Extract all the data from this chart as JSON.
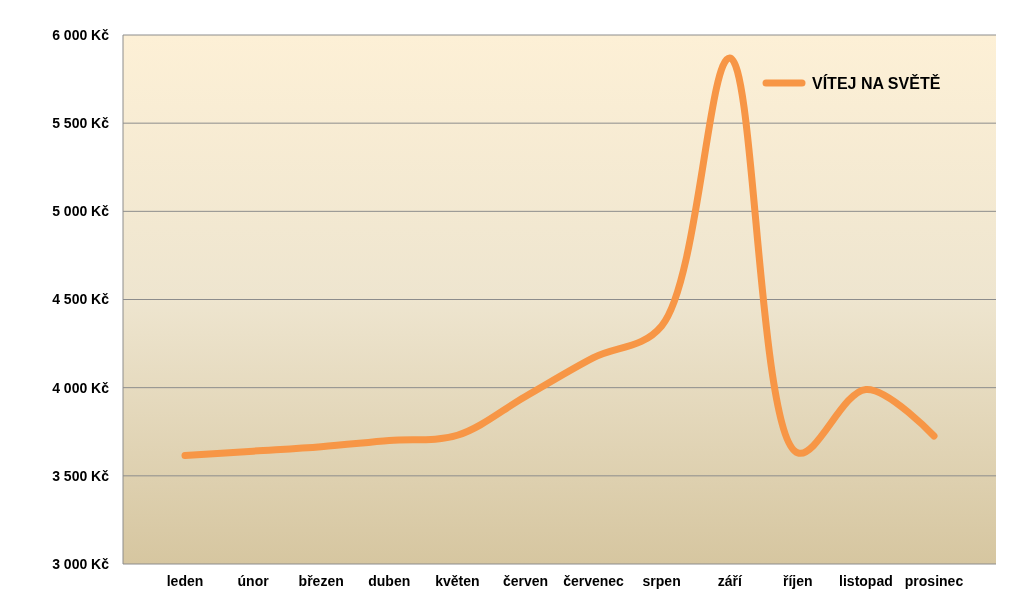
{
  "chart_data": {
    "type": "line",
    "categories": [
      "leden",
      "únor",
      "březen",
      "duben",
      "květen",
      "červen",
      "červenec",
      "srpen",
      "září",
      "říjen",
      "listopad",
      "prosinec"
    ],
    "series": [
      {
        "name": "VÍTEJ NA SVĚTĚ",
        "color": "#f79646",
        "values": [
          3615,
          3640,
          3665,
          3700,
          3730,
          3950,
          4170,
          4350,
          5870,
          3630,
          3990,
          3726
        ]
      }
    ],
    "ylim": [
      3000,
      6000
    ],
    "yticks": [
      {
        "value": 3000,
        "label": "3 000 Kč"
      },
      {
        "value": 3500,
        "label": "3 500 Kč"
      },
      {
        "value": 4000,
        "label": "4 000 Kč"
      },
      {
        "value": 4500,
        "label": "4 500 Kč"
      },
      {
        "value": 5000,
        "label": "5 000 Kč"
      },
      {
        "value": 5500,
        "label": "5 500 Kč"
      },
      {
        "value": 6000,
        "label": "6 000 Kč"
      }
    ],
    "grid": "y",
    "legend": "top right",
    "marker": "none",
    "line_style": "solid"
  }
}
